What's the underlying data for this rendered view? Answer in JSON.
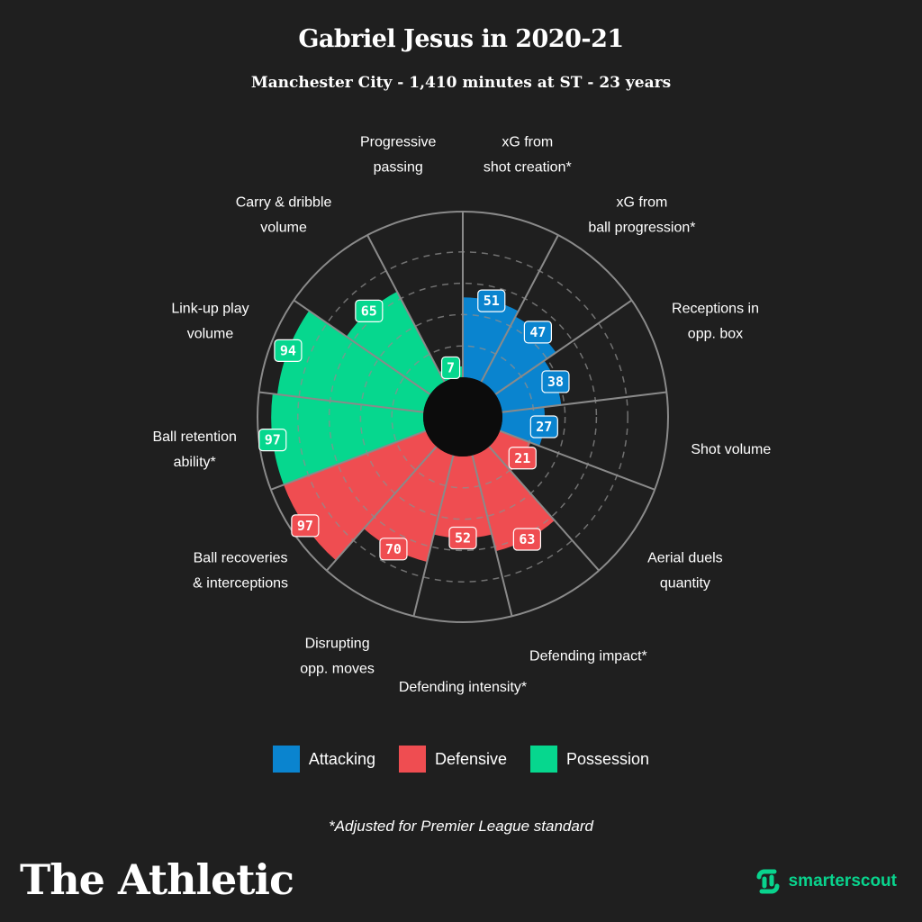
{
  "header": {
    "title": "Gabriel Jesus in 2020-21",
    "subtitle": "Manchester City - 1,410 minutes at ST - 23 years"
  },
  "colors": {
    "attacking": "#0a84cf",
    "defensive": "#ef4d51",
    "possession": "#06d78e",
    "background": "#1f1f1f"
  },
  "chart_data": {
    "type": "polar-area",
    "scale_max": 100,
    "grid_rings": [
      20,
      40,
      60,
      80,
      100
    ],
    "segments": [
      {
        "label": [
          "xG from",
          "shot creation*"
        ],
        "value": 51,
        "group": "attacking"
      },
      {
        "label": [
          "xG from",
          "ball progression*"
        ],
        "value": 47,
        "group": "attacking"
      },
      {
        "label": [
          "Receptions in",
          "opp. box"
        ],
        "value": 38,
        "group": "attacking"
      },
      {
        "label": [
          "Shot volume"
        ],
        "value": 27,
        "group": "attacking"
      },
      {
        "label": [
          "Aerial duels",
          "quantity"
        ],
        "value": 21,
        "group": "defensive"
      },
      {
        "label": [
          "Defending impact*"
        ],
        "value": 63,
        "group": "defensive"
      },
      {
        "label": [
          "Defending intensity*"
        ],
        "value": 52,
        "group": "defensive"
      },
      {
        "label": [
          "Disrupting",
          "opp. moves"
        ],
        "value": 70,
        "group": "defensive"
      },
      {
        "label": [
          "Ball recoveries",
          "& interceptions"
        ],
        "value": 97,
        "group": "defensive"
      },
      {
        "label": [
          "Ball retention",
          "ability*"
        ],
        "value": 97,
        "group": "possession"
      },
      {
        "label": [
          "Link-up play",
          "volume"
        ],
        "value": 94,
        "group": "possession"
      },
      {
        "label": [
          "Carry & dribble",
          "volume"
        ],
        "value": 65,
        "group": "possession"
      },
      {
        "label": [
          "Progressive",
          "passing"
        ],
        "value": 7,
        "group": "possession"
      }
    ]
  },
  "legend": {
    "attacking": "Attacking",
    "defensive": "Defensive",
    "possession": "Possession"
  },
  "footnote": "*Adjusted for Premier League standard",
  "branding": {
    "publisher": "The Athletic",
    "partner": "smarterscout"
  }
}
